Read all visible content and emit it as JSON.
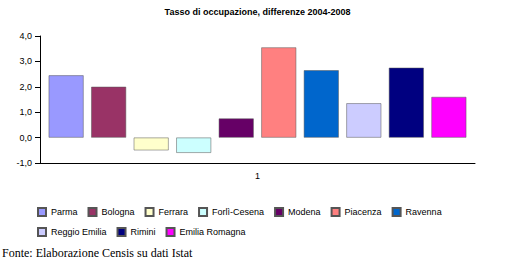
{
  "chart_data": {
    "type": "bar",
    "title": "Tasso di occupazione, differenze 2004-2008",
    "categories": [
      "1"
    ],
    "series": [
      {
        "name": "Parma",
        "color": "#9999ff",
        "values": [
          2.45
        ]
      },
      {
        "name": "Bologna",
        "color": "#993366",
        "values": [
          2.0
        ]
      },
      {
        "name": "Ferrara",
        "color": "#ffffcc",
        "values": [
          -0.5
        ]
      },
      {
        "name": "Forlì-Cesena",
        "color": "#ccffff",
        "values": [
          -0.6
        ]
      },
      {
        "name": "Modena",
        "color": "#660066",
        "values": [
          0.75
        ]
      },
      {
        "name": "Piacenza",
        "color": "#ff8080",
        "values": [
          3.55
        ]
      },
      {
        "name": "Ravenna",
        "color": "#0066cc",
        "values": [
          2.65
        ]
      },
      {
        "name": "Reggio Emilia",
        "color": "#ccccff",
        "values": [
          1.35
        ]
      },
      {
        "name": "Rimini",
        "color": "#000080",
        "values": [
          2.75
        ]
      },
      {
        "name": "Emilia Romagna",
        "color": "#ff00ff",
        "values": [
          1.6
        ]
      }
    ],
    "ylim": [
      -1,
      4
    ],
    "yticks": [
      {
        "value": -1,
        "label": "-1,0"
      },
      {
        "value": 0,
        "label": "0,0"
      },
      {
        "value": 1,
        "label": "1,0"
      },
      {
        "value": 2,
        "label": "2,0"
      },
      {
        "value": 3,
        "label": "3,0"
      },
      {
        "value": 4,
        "label": "4,0"
      }
    ],
    "grid": false,
    "legend": "bottom",
    "annotations": [
      "Fonte: Elaborazione Censis su dati Istat"
    ]
  }
}
